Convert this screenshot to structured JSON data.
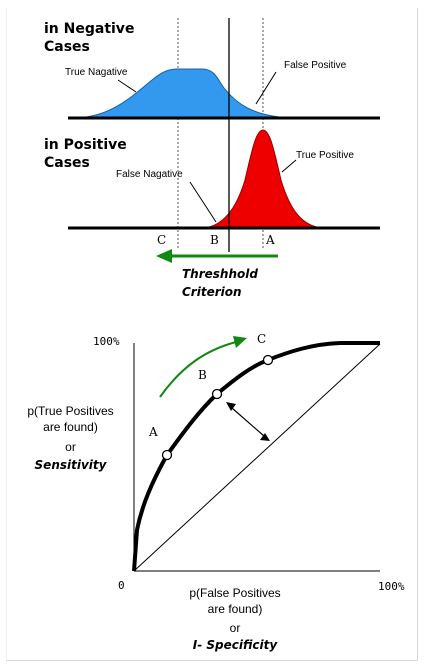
{
  "top": {
    "negative_heading_line1": "in Negative",
    "negative_heading_line2": "Cases",
    "true_negative": "True Nagative",
    "false_positive": "False Positive",
    "positive_heading_line1": "in Positive",
    "positive_heading_line2": "Cases",
    "false_negative": "False Nagative",
    "true_positive": "True Positive",
    "point_c": "C",
    "point_b": "B",
    "point_a": "A",
    "threshold_line1": "Threshhold",
    "threshold_line2": "Criterion",
    "colors": {
      "negative": "#3399ee",
      "positive": "#ee0000",
      "arrow": "#118811"
    }
  },
  "roc": {
    "y_max_label": "100%",
    "origin_label": "0",
    "x_max_label": "100%",
    "y_axis_line1": "p(True Positives",
    "y_axis_line2": "are found)",
    "y_axis_line3": "or",
    "y_axis_line4": "Sensitivity",
    "x_axis_line1": "p(False Positives",
    "x_axis_line2": "are found)",
    "x_axis_line3": "or",
    "x_axis_line4": "I- Specificity",
    "point_a": "A",
    "point_b": "B",
    "point_c": "C"
  }
}
